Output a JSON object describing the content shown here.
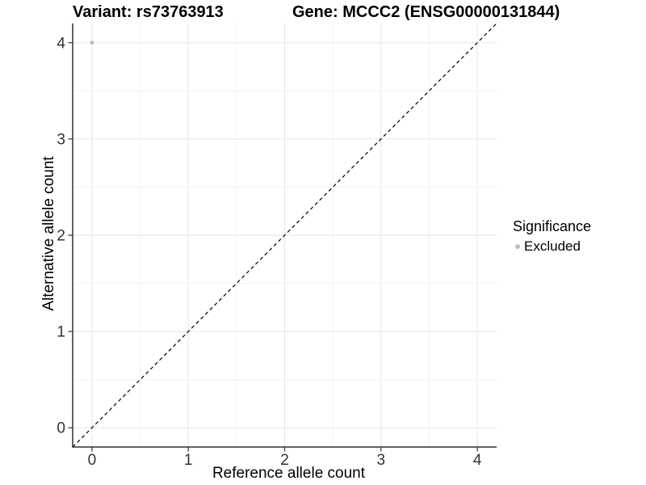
{
  "header": {
    "title_left": "Variant: rs73763913",
    "title_right": "Gene: MCCC2 (ENSG00000131844)"
  },
  "chart_data": {
    "type": "scatter",
    "xlabel": "Reference allele count",
    "ylabel": "Alternative allele count",
    "xlim": [
      -0.2,
      4.2
    ],
    "ylim": [
      -0.2,
      4.2
    ],
    "x_ticks": [
      0,
      1,
      2,
      3,
      4
    ],
    "y_ticks": [
      0,
      1,
      2,
      3,
      4
    ],
    "x_minor": [
      0.5,
      1.5,
      2.5,
      3.5
    ],
    "y_minor": [
      0.5,
      1.5,
      2.5,
      3.5
    ],
    "grid": true,
    "identity_line": {
      "style": "dashed",
      "color": "#000000",
      "from": [
        -0.2,
        -0.2
      ],
      "to": [
        4.2,
        4.2
      ]
    },
    "series": [
      {
        "name": "Excluded",
        "color": "#bebebe",
        "points": [
          {
            "x": 0,
            "y": 4
          }
        ]
      }
    ],
    "legend": {
      "title": "Significance",
      "position": "right",
      "entries": [
        {
          "label": "Excluded",
          "color": "#bebebe"
        }
      ]
    },
    "style": {
      "axis": "#2f2f2f",
      "tick_label": "#333333",
      "grid_major": "#e6e6e6",
      "grid_minor": "#f3f3f3",
      "background": "#ffffff"
    }
  }
}
